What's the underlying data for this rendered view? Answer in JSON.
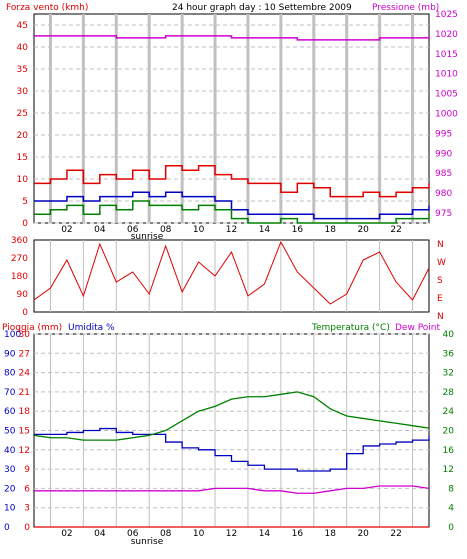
{
  "header": {
    "left_title": "Forza vento (kmh)",
    "center_title": "24 hour graph day : 10 Settembre 2009",
    "right_title": "Pressione (mb)"
  },
  "hour_labels": [
    "02",
    "04",
    "06",
    "08",
    "10",
    "12",
    "14",
    "16",
    "18",
    "20",
    "22"
  ],
  "sunrise_label": "sunrise",
  "colors": {
    "wind": "#e00000",
    "gust": "#e00000",
    "avg": "#0000c0",
    "min": "#008000",
    "pressure": "#d000d0",
    "humidity": "#0000c0",
    "temperature": "#008000",
    "dewpoint": "#d000d0",
    "rain": "#e00000",
    "grid": "#c0c0c0"
  },
  "chart_data": [
    {
      "type": "line",
      "title": "24 hour graph day : 10 Settembre 2009",
      "ylabel_left": "Forza vento (kmh)",
      "ylabel_right": "Pressione (mb)",
      "x_ticks": [
        "02",
        "04",
        "06",
        "08",
        "10",
        "12",
        "14",
        "16",
        "18",
        "20",
        "22"
      ],
      "left_ticks": [
        0,
        5,
        10,
        15,
        20,
        25,
        30,
        35,
        40,
        45
      ],
      "right_ticks": [
        975,
        980,
        985,
        990,
        995,
        1000,
        1005,
        1010,
        1015,
        1020,
        1025
      ],
      "ylim_left": [
        0,
        47.5
      ],
      "ylim_right": [
        972.5,
        1025
      ],
      "series": [
        {
          "name": "Forza vento (kmh)",
          "x": [
            0,
            1,
            2,
            3,
            4,
            5,
            6,
            7,
            8,
            9,
            10,
            11,
            12,
            13,
            14,
            15,
            16,
            17,
            18,
            19,
            20,
            21,
            22,
            23,
            24
          ],
          "values": [
            9,
            10,
            12,
            9,
            11,
            10,
            12,
            10,
            13,
            12,
            13,
            11,
            10,
            9,
            9,
            7,
            9,
            8,
            6,
            6,
            7,
            6,
            7,
            8,
            9
          ]
        },
        {
          "x": [
            0,
            1,
            2,
            3,
            4,
            5,
            6,
            7,
            8,
            9,
            10,
            11,
            12,
            13,
            14,
            15,
            16,
            17,
            18,
            19,
            20,
            21,
            22,
            23,
            24
          ],
          "values": [
            5,
            5,
            6,
            5,
            6,
            6,
            7,
            6,
            7,
            6,
            6,
            5,
            3,
            2,
            2,
            2,
            2,
            1,
            1,
            1,
            1,
            2,
            2,
            3,
            4
          ]
        },
        {
          "x": [
            0,
            1,
            2,
            3,
            4,
            5,
            6,
            7,
            8,
            9,
            10,
            11,
            12,
            13,
            14,
            15,
            16,
            17,
            18,
            19,
            20,
            21,
            22,
            23,
            24
          ],
          "values": [
            2,
            3,
            4,
            2,
            4,
            3,
            5,
            4,
            4,
            3,
            4,
            3,
            1,
            0,
            0,
            1,
            0,
            0,
            0,
            0,
            0,
            0,
            1,
            1,
            2
          ]
        },
        {
          "name": "Pressione (mb)",
          "x": [
            0,
            1,
            2,
            3,
            4,
            5,
            6,
            7,
            8,
            9,
            10,
            11,
            12,
            13,
            14,
            15,
            16,
            17,
            18,
            19,
            20,
            21,
            22,
            23,
            24
          ],
          "values": [
            1019.5,
            1019.5,
            1019.5,
            1019.5,
            1019.5,
            1019,
            1019,
            1019,
            1019.5,
            1019.5,
            1019.5,
            1019.5,
            1019,
            1019,
            1019,
            1019,
            1018.5,
            1018.5,
            1018.5,
            1018.5,
            1018.5,
            1019,
            1019,
            1019,
            1019.5
          ]
        }
      ]
    },
    {
      "type": "scatter",
      "right_axis": [
        "N",
        "W",
        "S",
        "E",
        "N"
      ],
      "left_ticks": [
        0,
        90,
        180,
        270,
        360
      ],
      "ylim": [
        0,
        360
      ],
      "series": [
        {
          "x": [
            0,
            1,
            2,
            3,
            4,
            5,
            6,
            7,
            8,
            9,
            10,
            11,
            12,
            13,
            14,
            15,
            16,
            17,
            18,
            19,
            20,
            21,
            22,
            23,
            24
          ],
          "values": [
            60,
            120,
            260,
            80,
            340,
            150,
            200,
            90,
            330,
            100,
            250,
            180,
            300,
            80,
            140,
            350,
            200,
            120,
            40,
            90,
            260,
            300,
            150,
            60,
            220
          ]
        }
      ]
    },
    {
      "type": "line",
      "ylabel_left": "Pioggia (mm)",
      "ylabel_left2": "Umidita %",
      "ylabel_right": "Temperatura (°C)",
      "ylabel_right2": "Dew Point",
      "rain_ticks": [
        0,
        3,
        6,
        9,
        12,
        15,
        18,
        21,
        24,
        27,
        30
      ],
      "hum_ticks": [
        0,
        10,
        20,
        30,
        40,
        50,
        60,
        70,
        80,
        90,
        100
      ],
      "temp_ticks": [
        0,
        4,
        8,
        12,
        16,
        20,
        24,
        28,
        32,
        36,
        40
      ],
      "ylim_rain": [
        0,
        30
      ],
      "ylim_hum": [
        0,
        100
      ],
      "ylim_temp": [
        0,
        40
      ],
      "series": [
        {
          "name": "Umidita %",
          "x": [
            0,
            1,
            2,
            3,
            4,
            5,
            6,
            7,
            8,
            9,
            10,
            11,
            12,
            13,
            14,
            15,
            16,
            17,
            18,
            19,
            20,
            21,
            22,
            23,
            24
          ],
          "values": [
            48,
            48,
            49,
            50,
            51,
            49,
            48,
            48,
            44,
            41,
            40,
            37,
            34,
            32,
            30,
            30,
            29,
            29,
            30,
            38,
            42,
            43,
            44,
            45,
            47
          ]
        },
        {
          "name": "Temperatura (°C)",
          "x": [
            0,
            1,
            2,
            3,
            4,
            5,
            6,
            7,
            8,
            9,
            10,
            11,
            12,
            13,
            14,
            15,
            16,
            17,
            18,
            19,
            20,
            21,
            22,
            23,
            24
          ],
          "values": [
            19,
            18.5,
            18.5,
            18,
            18,
            18,
            18.5,
            19,
            20,
            22,
            24,
            25,
            26.5,
            27,
            27,
            27.5,
            28,
            27,
            24.5,
            23,
            22.5,
            22,
            21.5,
            21,
            20.5
          ]
        },
        {
          "name": "Dew Point",
          "x": [
            0,
            1,
            2,
            3,
            4,
            5,
            6,
            7,
            8,
            9,
            10,
            11,
            12,
            13,
            14,
            15,
            16,
            17,
            18,
            19,
            20,
            21,
            22,
            23,
            24
          ],
          "values": [
            7.5,
            7.5,
            7.5,
            7.5,
            7.5,
            7.5,
            7.5,
            7.5,
            7.5,
            7.5,
            7.5,
            8,
            8,
            8,
            7.5,
            7.5,
            7,
            7,
            7.5,
            8,
            8,
            8.5,
            8.5,
            8.5,
            8
          ]
        },
        {
          "name": "Pioggia (mm)",
          "x": [
            0,
            24
          ],
          "values": [
            0,
            0
          ]
        }
      ]
    }
  ],
  "lower_labels": {
    "rain": "Pioggia (mm)",
    "humidity": "Umidita %",
    "temperature": "Temperatura (°C)",
    "dewpoint": "Dew Point"
  }
}
